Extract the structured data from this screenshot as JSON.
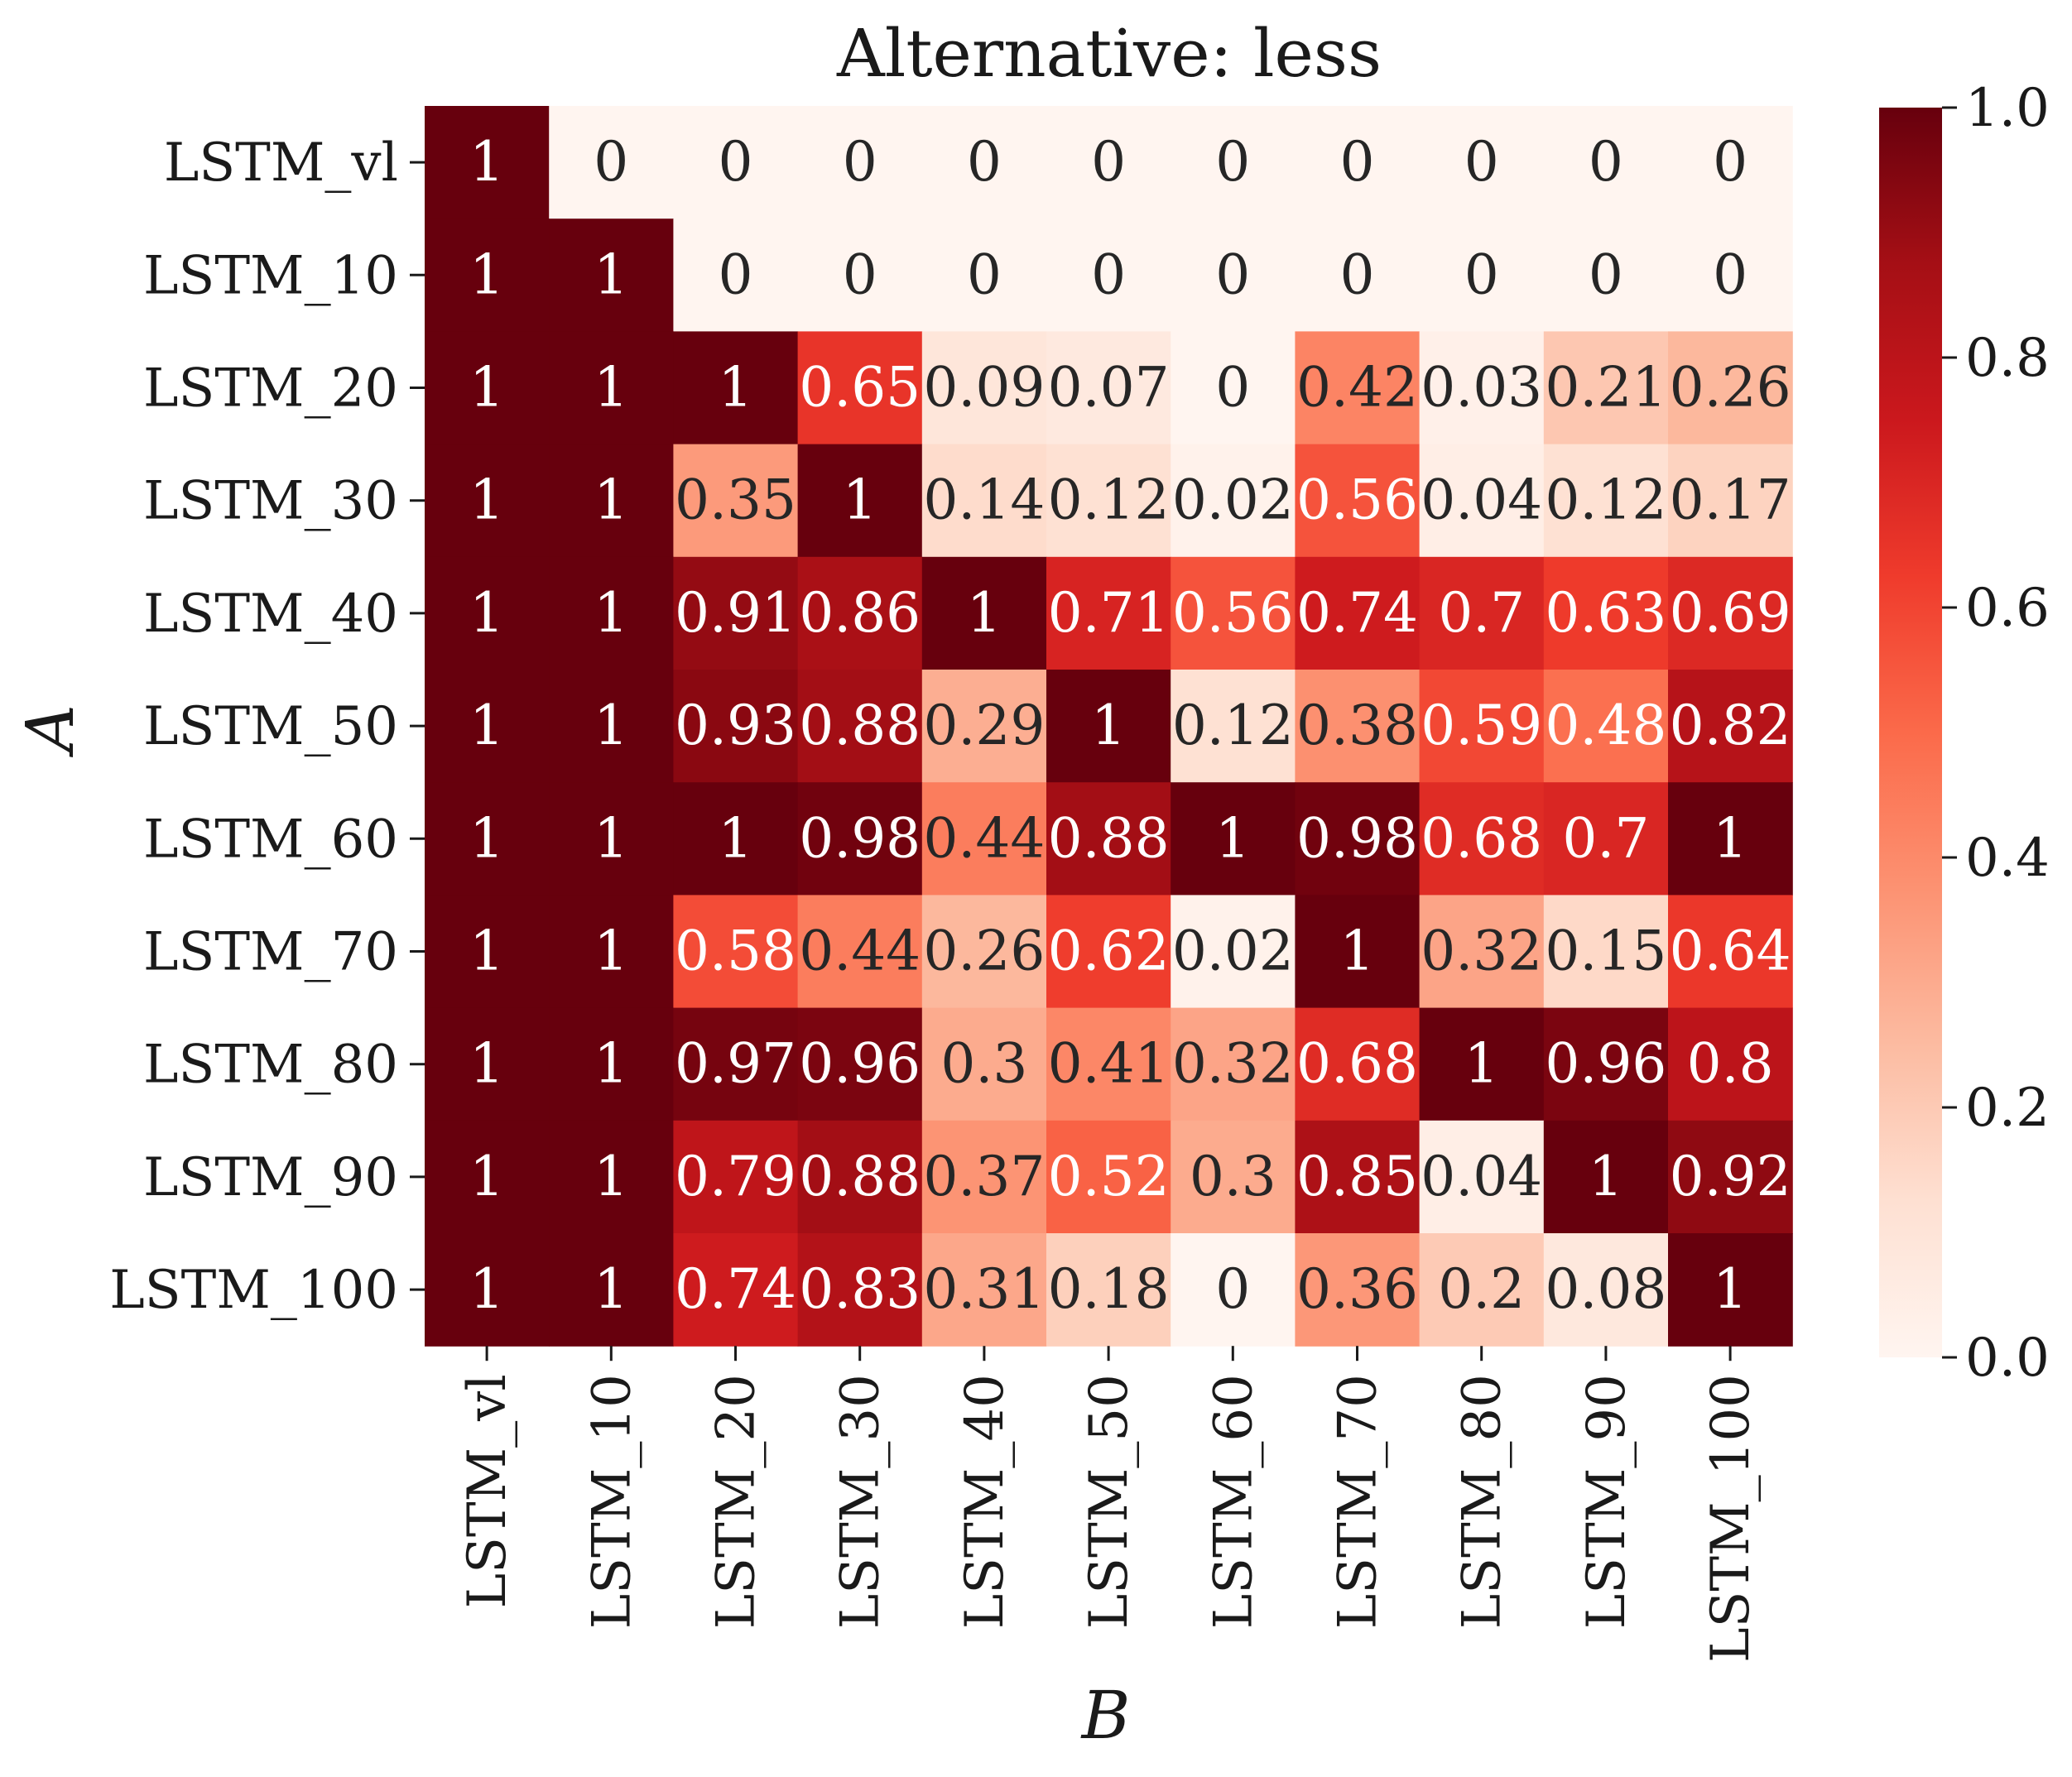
{
  "chart_data": {
    "type": "heatmap",
    "title": "Alternative: less",
    "xlabel": "B",
    "ylabel": "A",
    "x_categories": [
      "LSTM_vl",
      "LSTM_10",
      "LSTM_20",
      "LSTM_30",
      "LSTM_40",
      "LSTM_50",
      "LSTM_60",
      "LSTM_70",
      "LSTM_80",
      "LSTM_90",
      "LSTM_100"
    ],
    "y_categories": [
      "LSTM_vl",
      "LSTM_10",
      "LSTM_20",
      "LSTM_30",
      "LSTM_40",
      "LSTM_50",
      "LSTM_60",
      "LSTM_70",
      "LSTM_80",
      "LSTM_90",
      "LSTM_100"
    ],
    "values": [
      [
        1,
        0,
        0,
        0,
        0,
        0,
        0,
        0,
        0,
        0,
        0
      ],
      [
        1,
        1,
        0,
        0,
        0,
        0,
        0,
        0,
        0,
        0,
        0
      ],
      [
        1,
        1,
        1,
        0.65,
        0.09,
        0.07,
        0,
        0.42,
        0.03,
        0.21,
        0.26
      ],
      [
        1,
        1,
        0.35,
        1,
        0.14,
        0.12,
        0.02,
        0.56,
        0.04,
        0.12,
        0.17
      ],
      [
        1,
        1,
        0.91,
        0.86,
        1,
        0.71,
        0.56,
        0.74,
        0.7,
        0.63,
        0.69
      ],
      [
        1,
        1,
        0.93,
        0.88,
        0.29,
        1,
        0.12,
        0.38,
        0.59,
        0.48,
        0.82
      ],
      [
        1,
        1,
        1,
        0.98,
        0.44,
        0.88,
        1,
        0.98,
        0.68,
        0.7,
        1
      ],
      [
        1,
        1,
        0.58,
        0.44,
        0.26,
        0.62,
        0.02,
        1,
        0.32,
        0.15,
        0.64
      ],
      [
        1,
        1,
        0.97,
        0.96,
        0.3,
        0.41,
        0.32,
        0.68,
        1,
        0.96,
        0.8
      ],
      [
        1,
        1,
        0.79,
        0.88,
        0.37,
        0.52,
        0.3,
        0.85,
        0.04,
        1,
        0.92
      ],
      [
        1,
        1,
        0.74,
        0.83,
        0.31,
        0.18,
        0,
        0.36,
        0.2,
        0.08,
        1
      ]
    ],
    "value_range": [
      0,
      1
    ],
    "colormap": "Reds",
    "colorbar_ticks": [
      "0.0",
      "0.2",
      "0.4",
      "0.6",
      "0.8",
      "1.0"
    ],
    "grid": false
  }
}
